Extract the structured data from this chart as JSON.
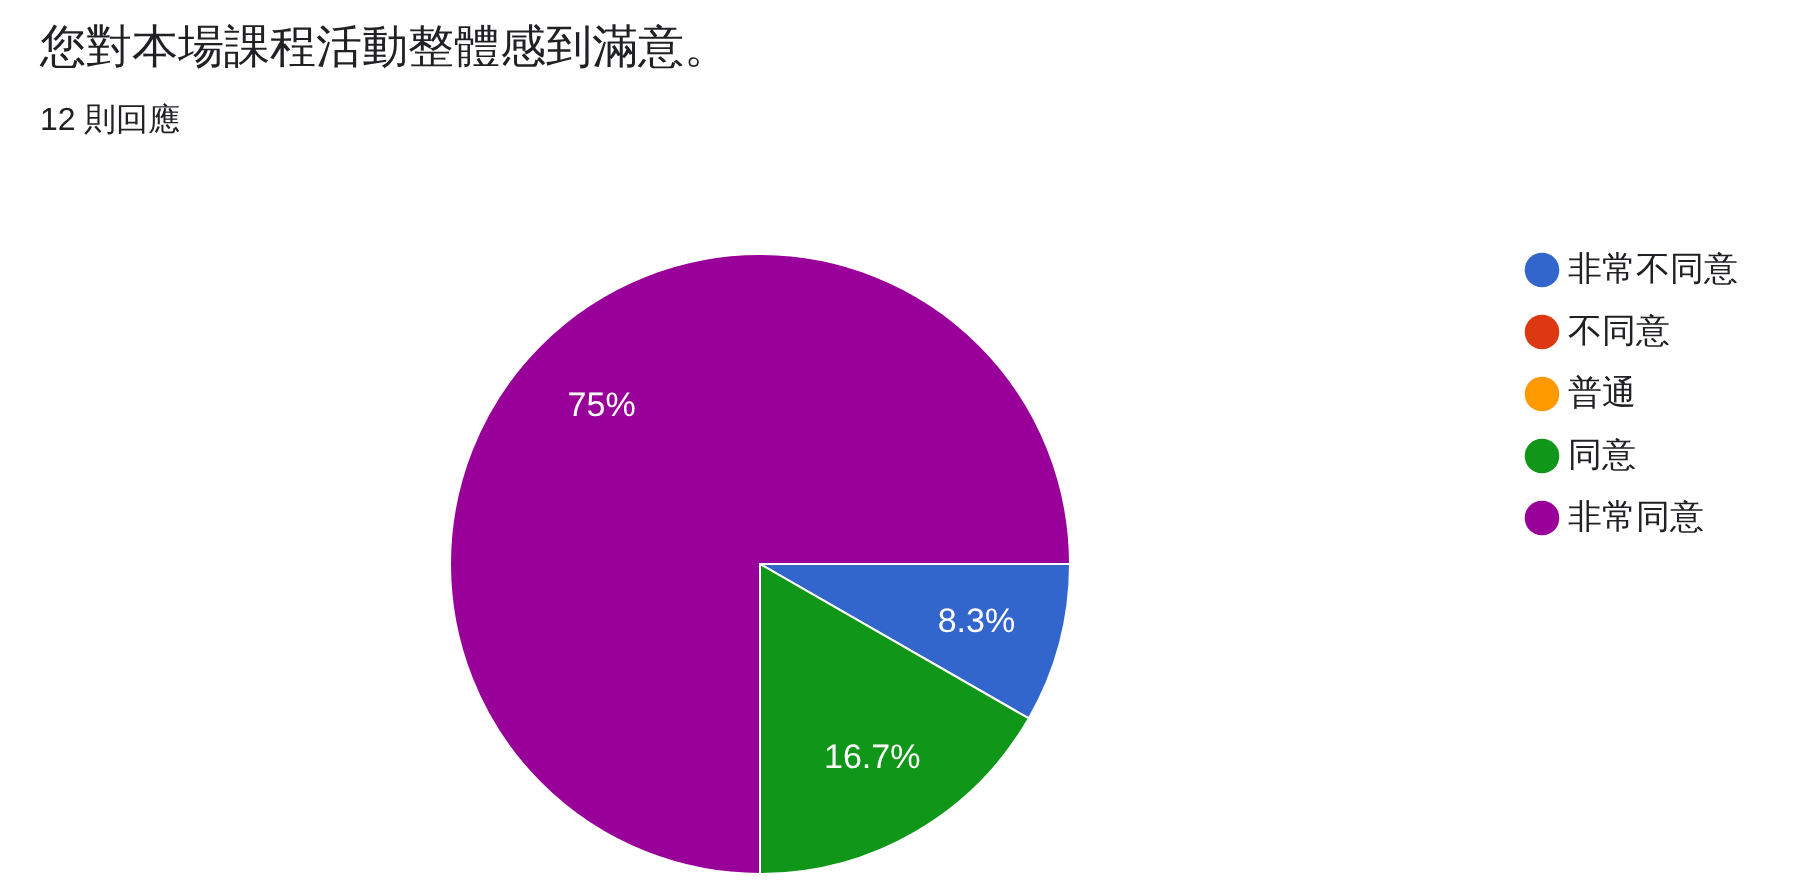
{
  "chart_data": {
    "type": "pie",
    "title": "您對本場課程活動整體感到滿意。",
    "subtitle": "12 則回應",
    "categories": [
      "非常不同意",
      "不同意",
      "普通",
      "同意",
      "非常同意"
    ],
    "values": [
      8.3,
      0,
      0,
      16.7,
      75
    ],
    "colors": [
      "#3366cc",
      "#dc3912",
      "#ff9900",
      "#109618",
      "#990099"
    ],
    "value_labels": [
      "8.3%",
      null,
      null,
      "16.7%",
      "75%"
    ],
    "legend": "right"
  }
}
